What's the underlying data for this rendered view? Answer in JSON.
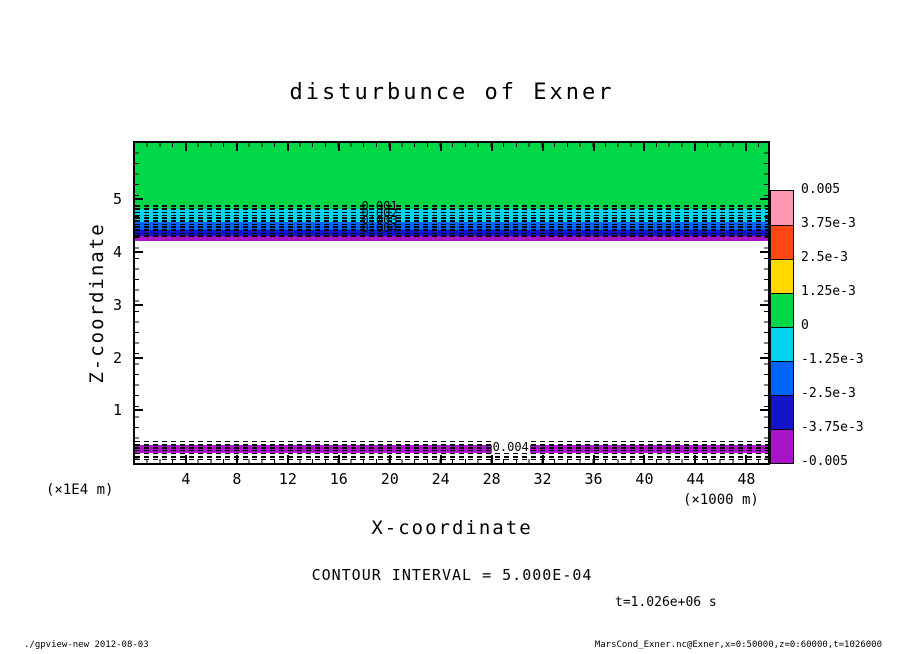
{
  "title": {
    "text": "disturbunce of Exner"
  },
  "axes": {
    "x_label": "X-coordinate",
    "y_label": "Z-coordinate",
    "x_unit_note": "(×1000 m)",
    "y_unit_note": "(×1E4 m)"
  },
  "annotations": {
    "contour_interval": "CONTOUR INTERVAL = 5.000E-04",
    "time": "t=1.026e+06 s"
  },
  "footer": {
    "left": "./gpview-new  2012-08-03",
    "right": "MarsCond_Exner.nc@Exner,x=0:50000,z=0:60000,t=1026000"
  },
  "colorbar": {
    "labels": [
      "0.005",
      "3.75e-3",
      "2.5e-3",
      "1.25e-3",
      "0",
      "-1.25e-3",
      "-2.5e-3",
      "-3.75e-3",
      "-0.005"
    ],
    "segment_colors": [
      "#ff96b4",
      "#ff4614",
      "#ffd800",
      "#00d848",
      "#00d2f0",
      "#0064ff",
      "#1414c8",
      "#aa14c8"
    ]
  },
  "chart_data": {
    "type": "heatmap",
    "title": "disturbunce of Exner",
    "xlabel": "X-coordinate",
    "ylabel": "Z-coordinate",
    "x_units": "×1000 m",
    "z_units": "×1E4 m",
    "x_range": [
      0,
      49.7
    ],
    "z_range": [
      0,
      6.07
    ],
    "x_ticks": [
      4,
      8,
      12,
      16,
      20,
      24,
      28,
      32,
      36,
      40,
      44,
      48
    ],
    "y_ticks": [
      1,
      2,
      3,
      4,
      5
    ],
    "contour_interval": 0.0005,
    "time_seconds": 1026000,
    "levels": [
      -0.005,
      -0.00375,
      -0.0025,
      -0.00125,
      0,
      0.00125,
      0.0025,
      0.00375,
      0.005
    ],
    "legend_position": "right",
    "bands": [
      {
        "name": "green-near-zero",
        "z_top": 6.07,
        "z_bottom": 4.82,
        "value_range": "0 to 1.25e-3",
        "color": "#00d848"
      },
      {
        "name": "cyan",
        "z_top": 4.82,
        "z_bottom": 4.57,
        "value_range": "-1.25e-3 to 0",
        "color": "#00d2f0"
      },
      {
        "name": "blue",
        "z_top": 4.57,
        "z_bottom": 4.42,
        "value_range": "-2.5e-3 to -1.25e-3",
        "color": "#0064ff"
      },
      {
        "name": "navy",
        "z_top": 4.42,
        "z_bottom": 4.3,
        "value_range": "-3.75e-3 to -2.5e-3",
        "color": "#1414c8"
      },
      {
        "name": "purple-upper",
        "z_top": 4.3,
        "z_bottom": 4.22,
        "value_range": "-0.005 to -3.75e-3",
        "color": "#aa14c8"
      },
      {
        "name": "below-range-white",
        "z_top": 4.22,
        "z_bottom": 0.34,
        "value_range": "< -0.005",
        "color": "#ffffff"
      },
      {
        "name": "purple-lower",
        "z_top": 0.34,
        "z_bottom": 0.19,
        "value_range": "-0.005 to -3.75e-3",
        "color": "#aa14c8"
      }
    ],
    "dashed_contours_z_upper": [
      4.89,
      4.83,
      4.77,
      4.71,
      4.66,
      4.6,
      4.54,
      4.49,
      4.43,
      4.37,
      4.32
    ],
    "dashed_contours_z_lower": [
      0.42,
      0.36,
      0.3,
      0.25,
      0.19,
      0.13,
      0.08
    ],
    "contour_labels": [
      {
        "text": "0.001",
        "x": 19.2,
        "z": 4.88,
        "boxed": false
      },
      {
        "text": "0.002",
        "x": 19.2,
        "z": 4.74,
        "boxed": false
      },
      {
        "text": "0.003",
        "x": 19.2,
        "z": 4.6,
        "boxed": false
      },
      {
        "text": "0.004",
        "x": 19.2,
        "z": 4.46,
        "boxed": false
      },
      {
        "text": "0.004",
        "x": 29.5,
        "z": 0.3,
        "boxed": true
      }
    ]
  }
}
